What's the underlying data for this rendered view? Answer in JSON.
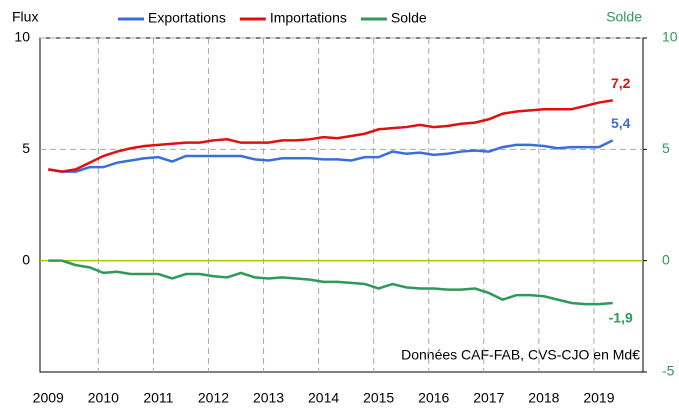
{
  "chart_data": {
    "type": "line",
    "ylabel": "Flux",
    "y2label": "Solde",
    "annotation": "Données CAF-FAB, CVS-CJO en Md€",
    "x": [
      2009,
      2009.25,
      2009.5,
      2009.75,
      2010,
      2010.25,
      2010.5,
      2010.75,
      2011,
      2011.25,
      2011.5,
      2011.75,
      2012,
      2012.25,
      2012.5,
      2012.75,
      2013,
      2013.25,
      2013.5,
      2013.75,
      2014,
      2014.25,
      2014.5,
      2014.75,
      2015,
      2015.25,
      2015.5,
      2015.75,
      2016,
      2016.25,
      2016.5,
      2016.75,
      2017,
      2017.25,
      2017.5,
      2017.75,
      2018,
      2018.25,
      2018.5,
      2018.75,
      2019,
      2019.25
    ],
    "series": [
      {
        "name": "Exportations",
        "color": "#3a6fd8",
        "values": [
          4.1,
          4.0,
          4.0,
          4.2,
          4.2,
          4.4,
          4.5,
          4.6,
          4.65,
          4.45,
          4.7,
          4.7,
          4.7,
          4.7,
          4.7,
          4.55,
          4.5,
          4.6,
          4.6,
          4.6,
          4.55,
          4.55,
          4.5,
          4.65,
          4.65,
          4.9,
          4.8,
          4.85,
          4.75,
          4.8,
          4.9,
          4.95,
          4.9,
          5.1,
          5.2,
          5.2,
          5.15,
          5.05,
          5.1,
          5.1,
          5.1,
          5.4
        ],
        "value_labels": [
          null,
          null,
          null,
          null,
          null,
          null,
          null,
          null,
          null,
          null,
          null,
          null,
          null,
          null,
          null,
          null,
          null,
          null,
          null,
          null,
          null,
          null,
          null,
          null,
          null,
          null,
          null,
          null,
          null,
          null,
          null,
          null,
          null,
          null,
          null,
          null,
          null,
          null,
          null,
          null,
          null,
          "5,4"
        ]
      },
      {
        "name": "Importations",
        "color": "#e01010",
        "values": [
          4.1,
          4.0,
          4.1,
          4.4,
          4.7,
          4.9,
          5.05,
          5.15,
          5.2,
          5.25,
          5.3,
          5.3,
          5.4,
          5.45,
          5.3,
          5.3,
          5.3,
          5.4,
          5.4,
          5.45,
          5.55,
          5.5,
          5.6,
          5.7,
          5.9,
          5.95,
          6.0,
          6.1,
          6.0,
          6.05,
          6.15,
          6.2,
          6.35,
          6.6,
          6.7,
          6.75,
          6.8,
          6.8,
          6.8,
          6.95,
          7.1,
          7.2
        ],
        "value_labels": [
          null,
          null,
          null,
          null,
          null,
          null,
          null,
          null,
          null,
          null,
          null,
          null,
          null,
          null,
          null,
          null,
          null,
          null,
          null,
          null,
          null,
          null,
          null,
          null,
          null,
          null,
          null,
          null,
          null,
          null,
          null,
          null,
          null,
          null,
          null,
          null,
          null,
          null,
          null,
          null,
          null,
          "7,2"
        ]
      },
      {
        "name": "Solde",
        "color": "#2e9a5a",
        "axis": "y2",
        "values": [
          0,
          0,
          -0.2,
          -0.3,
          -0.55,
          -0.5,
          -0.6,
          -0.6,
          -0.6,
          -0.8,
          -0.6,
          -0.6,
          -0.7,
          -0.75,
          -0.55,
          -0.75,
          -0.8,
          -0.75,
          -0.8,
          -0.85,
          -0.95,
          -0.95,
          -1.0,
          -1.05,
          -1.25,
          -1.05,
          -1.2,
          -1.25,
          -1.25,
          -1.3,
          -1.3,
          -1.25,
          -1.45,
          -1.75,
          -1.55,
          -1.55,
          -1.6,
          -1.75,
          -1.9,
          -1.95,
          -1.95,
          -1.9
        ],
        "value_labels": [
          null,
          null,
          null,
          null,
          null,
          null,
          null,
          null,
          null,
          null,
          null,
          null,
          null,
          null,
          null,
          null,
          null,
          null,
          null,
          null,
          null,
          null,
          null,
          null,
          null,
          null,
          null,
          null,
          null,
          null,
          null,
          null,
          null,
          null,
          null,
          null,
          null,
          null,
          null,
          null,
          null,
          "-1,9"
        ]
      }
    ],
    "xlim": [
      2008.85,
      2019.8
    ],
    "xticks": [
      2009,
      2010,
      2011,
      2012,
      2013,
      2014,
      2015,
      2016,
      2017,
      2018,
      2019
    ],
    "ylim": [
      -5,
      10
    ],
    "yticks": [
      10,
      5,
      0
    ],
    "y2lim": [
      -5,
      10
    ],
    "y2ticks": [
      10,
      5,
      0,
      -5
    ],
    "y2_zero_line_color": "#a8c800",
    "grid": true
  }
}
